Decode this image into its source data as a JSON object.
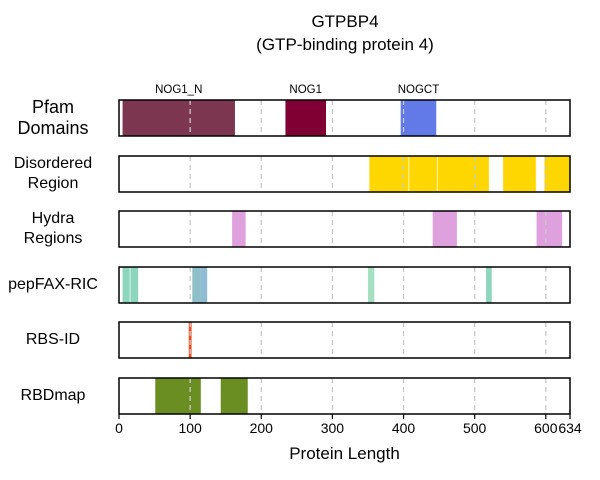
{
  "chart_data": {
    "type": "track",
    "title": "GTPBP4",
    "subtitle": "(GTP-binding protein 4)",
    "xlabel": "Protein Length",
    "xlim": [
      0,
      634
    ],
    "xticks": [
      0,
      100,
      200,
      300,
      400,
      500,
      600,
      634
    ],
    "grid": "vertical dashed at 100, 200, 300, 400, 500, 600",
    "tracks": [
      {
        "name": "Pfam\nDomains",
        "segments": [
          {
            "start": 5,
            "end": 163,
            "color": "#7d3650",
            "label": "NOG1_N"
          },
          {
            "start": 234,
            "end": 291,
            "color": "#800033",
            "label": "NOG1"
          },
          {
            "start": 396,
            "end": 446,
            "color": "#6279e8",
            "label": "NOGCT"
          }
        ]
      },
      {
        "name": "Disordered\nRegion",
        "segments": [
          {
            "start": 352,
            "end": 407,
            "color": "#ffd700"
          },
          {
            "start": 408,
            "end": 447,
            "color": "#ffd700"
          },
          {
            "start": 448,
            "end": 520,
            "color": "#ffd700"
          },
          {
            "start": 540,
            "end": 586,
            "color": "#ffd700"
          },
          {
            "start": 598,
            "end": 634,
            "color": "#ffd700"
          }
        ]
      },
      {
        "name": "Hydra\nRegions",
        "segments": [
          {
            "start": 159,
            "end": 178,
            "color": "#dea1dd"
          },
          {
            "start": 441,
            "end": 475,
            "color": "#dea1dd"
          },
          {
            "start": 587,
            "end": 623,
            "color": "#dea1dd"
          }
        ]
      },
      {
        "name": "pepFAX-RIC",
        "segments": [
          {
            "start": 5,
            "end": 15,
            "color": "#8dd5bd"
          },
          {
            "start": 16,
            "end": 27,
            "color": "#8dd5bd"
          },
          {
            "start": 103,
            "end": 114,
            "color": "#8fc0c8"
          },
          {
            "start": 114,
            "end": 124,
            "color": "#8fbcd0"
          },
          {
            "start": 350,
            "end": 359,
            "color": "#a6dfc1"
          },
          {
            "start": 516,
            "end": 524,
            "color": "#8dd5bd"
          }
        ]
      },
      {
        "name": "RBS-ID",
        "segments": [
          {
            "start": 98,
            "end": 102,
            "color": "#e8501e"
          }
        ]
      },
      {
        "name": "RBDmap",
        "segments": [
          {
            "start": 51,
            "end": 115,
            "color": "#6b8e23"
          },
          {
            "start": 143,
            "end": 181,
            "color": "#6b8e23"
          }
        ]
      }
    ]
  }
}
